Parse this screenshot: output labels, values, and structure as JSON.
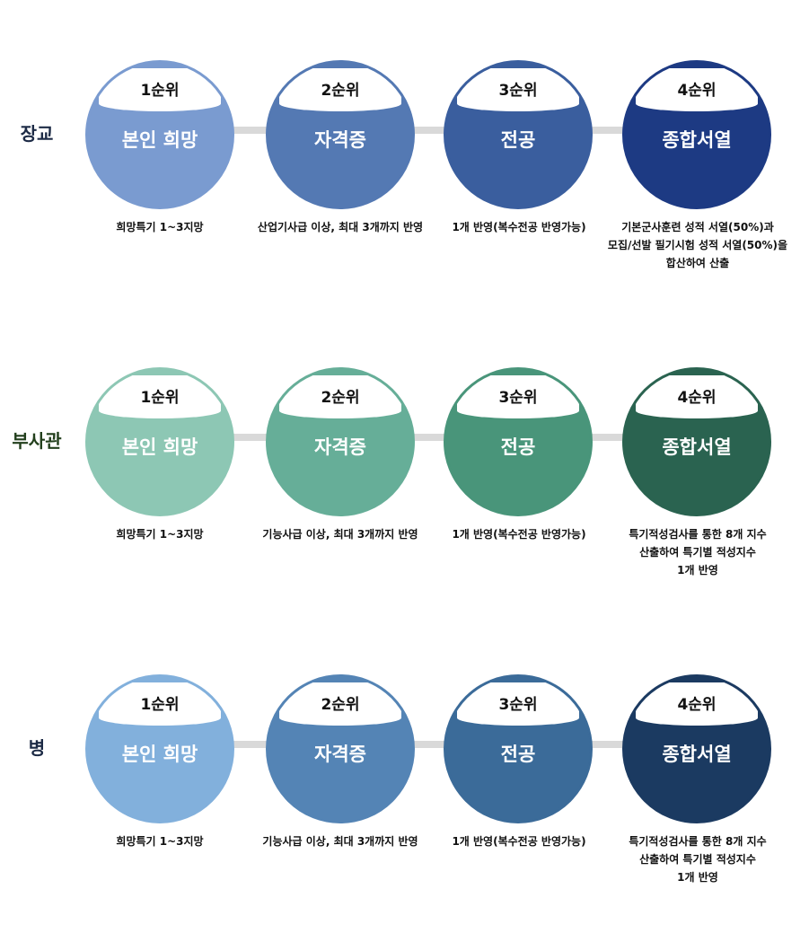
{
  "sections": [
    {
      "category": "장교",
      "colors": [
        "#7a9bd0",
        "#5479b3",
        "#3a5e9e",
        "#1d3a83"
      ],
      "steps": [
        {
          "rank": "1순위",
          "title": "본인 희망",
          "desc": "희망특기 1~3지망"
        },
        {
          "rank": "2순위",
          "title": "자격증",
          "desc": "산업기사급 이상, 최대 3개까지 반영"
        },
        {
          "rank": "3순위",
          "title": "전공",
          "desc": "1개 반영(복수전공 반영가능)"
        },
        {
          "rank": "4순위",
          "title": "종합서열",
          "desc": "기본군사훈련 성적 서열(50%)과\n모집/선발 필기시험 성적 서열(50%)을\n합산하여 산출"
        }
      ]
    },
    {
      "category": "부사관",
      "colors": [
        "#8dc7b4",
        "#66ae98",
        "#49957a",
        "#2a6350"
      ],
      "steps": [
        {
          "rank": "1순위",
          "title": "본인 희망",
          "desc": "희망특기 1~3지망"
        },
        {
          "rank": "2순위",
          "title": "자격증",
          "desc": "기능사급 이상, 최대 3개까지 반영"
        },
        {
          "rank": "3순위",
          "title": "전공",
          "desc": "1개 반영(복수전공 반영가능)"
        },
        {
          "rank": "4순위",
          "title": "종합서열",
          "desc": "특기적성검사를 통한 8개 지수\n산출하여 특기별 적성지수\n1개 반영"
        }
      ]
    },
    {
      "category": "병",
      "colors": [
        "#82b0dc",
        "#5484b5",
        "#3b6b99",
        "#1b3a61"
      ],
      "steps": [
        {
          "rank": "1순위",
          "title": "본인 희망",
          "desc": "희망특기 1~3지망"
        },
        {
          "rank": "2순위",
          "title": "자격증",
          "desc": "기능사급 이상, 최대 3개까지 반영"
        },
        {
          "rank": "3순위",
          "title": "전공",
          "desc": "1개 반영(복수전공 반영가능)"
        },
        {
          "rank": "4순위",
          "title": "종합서열",
          "desc": "특기적성검사를 통한 8개 지수\n산출하여 특기별 적성지수\n1개 반영"
        }
      ]
    }
  ]
}
